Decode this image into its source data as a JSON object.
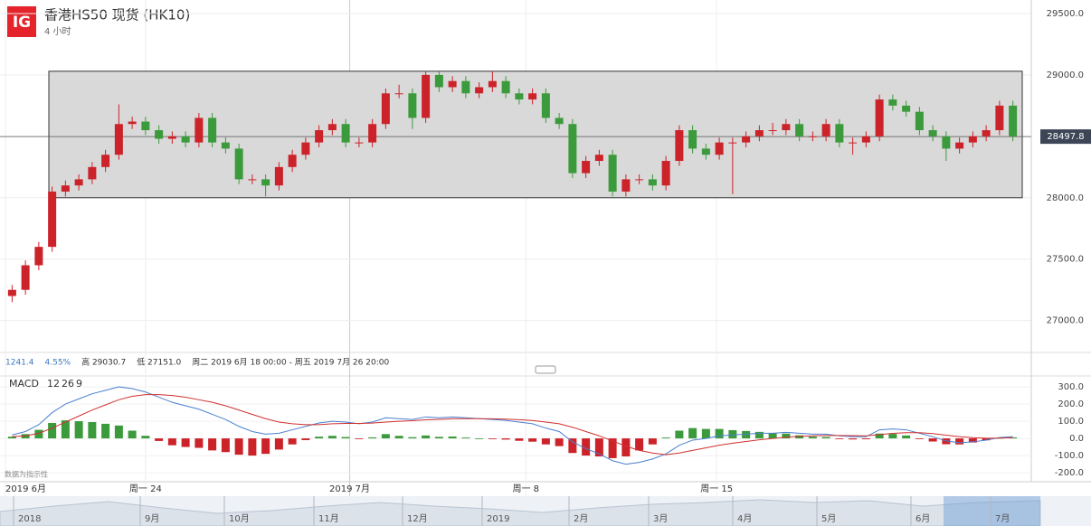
{
  "chart_data": {
    "type": "candlestick",
    "logo": "IG",
    "title": "香港HS50 现货 (HK10)",
    "subtitle": "4 小时",
    "stats": [
      "1241.4",
      "4.55%",
      "高 29030.7",
      "低 27151.0",
      "周二 2019 6月 18 00:00 - 周五 2019 7月 26 20:00"
    ],
    "last_price": {
      "value": 28497.8,
      "label": "28497.8"
    },
    "range_box": {
      "low": 28000,
      "high": 29030
    },
    "up_color": "#cc2229",
    "down_color": "#3b9a3b",
    "ylim": [
      26740,
      29610
    ],
    "yticks": [
      {
        "value": 27000,
        "label": "27000.0"
      },
      {
        "value": 27500,
        "label": "27500.0"
      },
      {
        "value": 28000,
        "label": "28000.0"
      },
      {
        "value": 28500,
        "label": "28500.0"
      },
      {
        "value": 29000,
        "label": "29000.0"
      },
      {
        "value": 29500,
        "label": "29500.0"
      }
    ],
    "xlim": [
      0,
      76
    ],
    "xticks": [
      {
        "value": 0,
        "label": "2019 6月"
      },
      {
        "value": 10.5,
        "label": "周一 24"
      },
      {
        "value": 25.8,
        "label": "2019 7月"
      },
      {
        "value": 39,
        "label": "周一 8"
      },
      {
        "value": 53.3,
        "label": "周一 15"
      }
    ],
    "open": [
      27200,
      27250,
      27450,
      27600,
      28050,
      28100,
      28150,
      28250,
      28350,
      28600,
      28620,
      28550,
      28480,
      28500,
      28450,
      28650,
      28450,
      28400,
      28150,
      28150,
      28100,
      28250,
      28350,
      28450,
      28550,
      28600,
      28450,
      28450,
      28600,
      28850,
      28850,
      28650,
      29000,
      28900,
      28950,
      28850,
      28900,
      28950,
      28850,
      28800,
      28850,
      28650,
      28600,
      28200,
      28300,
      28350,
      28050,
      28150,
      28150,
      28100,
      28300,
      28550,
      28400,
      28350,
      28450,
      28450,
      28500,
      28550,
      28550,
      28600,
      28500,
      28500,
      28600,
      28450,
      28450,
      28500,
      28800,
      28750,
      28700,
      28550,
      28500,
      28400,
      28450,
      28500,
      28550,
      28750
    ],
    "high": [
      27290,
      27490,
      27640,
      28090,
      28140,
      28190,
      28290,
      28390,
      28760,
      28660,
      28660,
      28590,
      28540,
      28540,
      28690,
      28690,
      28490,
      28440,
      28190,
      28190,
      28290,
      28390,
      28490,
      28590,
      28640,
      28640,
      28490,
      28640,
      28890,
      28920,
      28890,
      29030,
      29030,
      28990,
      28990,
      28940,
      29030,
      28990,
      28890,
      28890,
      28890,
      28690,
      28640,
      28340,
      28390,
      28390,
      28190,
      28190,
      28190,
      28340,
      28590,
      28590,
      28440,
      28490,
      28490,
      28540,
      28590,
      28610,
      28640,
      28640,
      28540,
      28640,
      28640,
      28490,
      28540,
      28840,
      28840,
      28790,
      28740,
      28590,
      28540,
      28490,
      28540,
      28590,
      28790,
      28790
    ],
    "low": [
      27150,
      27210,
      27410,
      27560,
      28010,
      28060,
      28110,
      28210,
      28310,
      28560,
      28510,
      28440,
      28440,
      28410,
      28410,
      28410,
      28360,
      28110,
      28110,
      28010,
      28060,
      28210,
      28310,
      28410,
      28510,
      28410,
      28410,
      28410,
      28560,
      28810,
      28560,
      28610,
      28860,
      28860,
      28810,
      28810,
      28860,
      28810,
      28760,
      28760,
      28610,
      28560,
      28160,
      28160,
      28260,
      28010,
      28010,
      28110,
      28060,
      28060,
      28260,
      28360,
      28310,
      28310,
      28030,
      28410,
      28460,
      28510,
      28510,
      28460,
      28460,
      28460,
      28410,
      28350,
      28410,
      28460,
      28710,
      28660,
      28510,
      28460,
      28300,
      28360,
      28410,
      28460,
      28510,
      28460
    ],
    "close": [
      27250,
      27450,
      27600,
      28050,
      28100,
      28150,
      28250,
      28350,
      28600,
      28620,
      28550,
      28480,
      28500,
      28450,
      28650,
      28450,
      28400,
      28150,
      28150,
      28100,
      28250,
      28350,
      28450,
      28550,
      28600,
      28450,
      28450,
      28600,
      28850,
      28850,
      28650,
      29000,
      28900,
      28950,
      28850,
      28900,
      28950,
      28850,
      28800,
      28850,
      28650,
      28600,
      28200,
      28300,
      28350,
      28050,
      28150,
      28150,
      28100,
      28300,
      28550,
      28400,
      28350,
      28450,
      28450,
      28500,
      28550,
      28550,
      28600,
      28500,
      28500,
      28600,
      28450,
      28450,
      28500,
      28800,
      28750,
      28700,
      28550,
      28500,
      28400,
      28450,
      28500,
      28550,
      28750,
      28500
    ],
    "macd": {
      "label": "MACD",
      "params": [
        "12",
        "26",
        "9"
      ],
      "ylim": [
        -247,
        353
      ],
      "yticks": [
        {
          "value": 300,
          "label": "300.0"
        },
        {
          "value": 200,
          "label": "200.0"
        },
        {
          "value": 100,
          "label": "100.0"
        },
        {
          "value": 0,
          "label": "0.0"
        },
        {
          "value": -100,
          "label": "-100.0"
        },
        {
          "value": -200,
          "label": "-200.0"
        }
      ],
      "note": "数据为指示性",
      "series": [
        {
          "name": "MACD",
          "color": "#4a7fd0",
          "values": [
            20,
            40,
            80,
            150,
            200,
            230,
            260,
            280,
            300,
            290,
            270,
            240,
            210,
            190,
            170,
            140,
            110,
            70,
            40,
            25,
            30,
            50,
            70,
            90,
            100,
            95,
            85,
            95,
            120,
            115,
            110,
            125,
            120,
            125,
            120,
            115,
            110,
            105,
            95,
            85,
            60,
            40,
            -20,
            -60,
            -90,
            -130,
            -150,
            -140,
            -120,
            -90,
            -40,
            -10,
            0,
            15,
            20,
            25,
            30,
            30,
            35,
            30,
            25,
            25,
            15,
            10,
            10,
            50,
            55,
            50,
            30,
            10,
            -15,
            -25,
            -20,
            -10,
            5,
            10
          ]
        },
        {
          "name": "Signal",
          "color": "#d03030",
          "values": [
            10,
            15,
            30,
            60,
            95,
            130,
            165,
            195,
            225,
            245,
            255,
            255,
            250,
            240,
            225,
            210,
            190,
            165,
            140,
            115,
            95,
            85,
            80,
            80,
            85,
            87,
            87,
            89,
            95,
            100,
            103,
            108,
            111,
            114,
            115,
            115,
            114,
            112,
            109,
            104,
            95,
            85,
            65,
            40,
            15,
            -15,
            -45,
            -70,
            -85,
            -95,
            -85,
            -70,
            -55,
            -40,
            -28,
            -18,
            -8,
            0,
            7,
            12,
            15,
            17,
            17,
            16,
            15,
            22,
            29,
            33,
            33,
            28,
            19,
            10,
            4,
            1,
            2,
            4
          ]
        }
      ],
      "histogram": [
        10,
        25,
        50,
        90,
        105,
        100,
        95,
        85,
        75,
        45,
        15,
        -15,
        -40,
        -50,
        -55,
        -70,
        -80,
        -95,
        -100,
        -90,
        -65,
        -35,
        -10,
        10,
        15,
        8,
        -2,
        6,
        25,
        15,
        7,
        17,
        9,
        11,
        5,
        0,
        -4,
        -7,
        -14,
        -19,
        -35,
        -45,
        -85,
        -100,
        -105,
        -115,
        -105,
        -70,
        -35,
        5,
        45,
        60,
        55,
        55,
        48,
        43,
        38,
        30,
        28,
        18,
        10,
        8,
        -2,
        -6,
        -5,
        28,
        26,
        17,
        -3,
        -18,
        -34,
        -35,
        -24,
        -11,
        3,
        6
      ]
    },
    "navigator_labels": [
      "2018",
      "9月",
      "10月",
      "11月",
      "12月",
      "2019",
      "2月",
      "3月",
      "4月",
      "5月",
      "6月",
      "7月"
    ]
  }
}
